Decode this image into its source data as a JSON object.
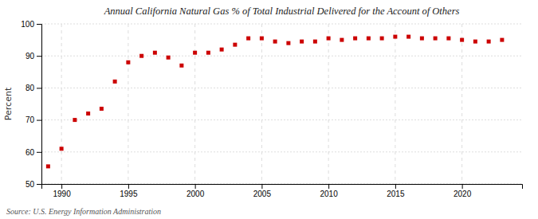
{
  "chart_data": {
    "type": "scatter",
    "title": "Annual California Natural Gas % of Total Industrial Delivered for the Account of Others",
    "y_label": "Percent",
    "annotations": [
      "Source: U.S. Energy Information Administration"
    ],
    "x": [
      1989,
      1990,
      1991,
      1992,
      1993,
      1994,
      1995,
      1996,
      1997,
      1998,
      1999,
      2000,
      2001,
      2002,
      2003,
      2004,
      2005,
      2006,
      2007,
      2008,
      2009,
      2010,
      2011,
      2012,
      2013,
      2014,
      2015,
      2016,
      2017,
      2018,
      2019,
      2020,
      2021,
      2022,
      2023
    ],
    "values": [
      55.5,
      61.0,
      70.0,
      72.0,
      73.5,
      82.0,
      88.0,
      90.0,
      91.0,
      89.5,
      87.0,
      91.0,
      91.0,
      92.0,
      93.5,
      95.5,
      95.5,
      94.5,
      94.0,
      94.5,
      94.5,
      95.5,
      95.0,
      95.5,
      95.5,
      95.5,
      96.0,
      96.0,
      95.5,
      95.5,
      95.5,
      95.0,
      94.5,
      94.5,
      95.0
    ],
    "color": "#cc0000",
    "marker": "square",
    "xlim": [
      1988.5,
      2024.5
    ],
    "ylim": [
      50,
      100
    ],
    "xticks": [
      1990,
      1995,
      2000,
      2005,
      2010,
      2015,
      2020
    ],
    "yticks": [
      50,
      60,
      70,
      80,
      90,
      100
    ],
    "grid": true
  }
}
